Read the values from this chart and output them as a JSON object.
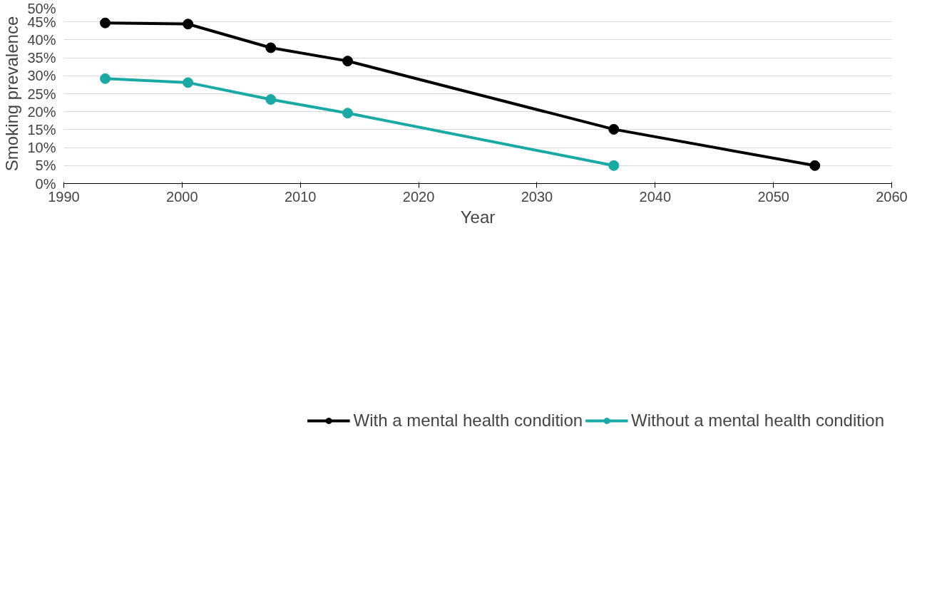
{
  "chart_data": {
    "type": "line",
    "xlabel": "Year",
    "ylabel": "Smoking prevalence",
    "xlim": [
      1990,
      2060
    ],
    "xticks": [
      1990,
      2000,
      2010,
      2020,
      2030,
      2040,
      2050,
      2060
    ],
    "ylim": [
      0,
      50
    ],
    "yticks": [
      {
        "value": 0,
        "label": "0%"
      },
      {
        "value": 5,
        "label": "5%"
      },
      {
        "value": 10,
        "label": "10%"
      },
      {
        "value": 15,
        "label": "15%"
      },
      {
        "value": 20,
        "label": "20%"
      },
      {
        "value": 25,
        "label": "25%"
      },
      {
        "value": 30,
        "label": "30%"
      },
      {
        "value": 35,
        "label": "35%"
      },
      {
        "value": 40,
        "label": "40%"
      },
      {
        "value": 45,
        "label": "45%"
      },
      {
        "value": 50,
        "label": "50%"
      }
    ],
    "grid": "y",
    "legend": "bottom",
    "marker": "circle",
    "line_style": "solid",
    "series": [
      {
        "name": "With a mental health condition",
        "color": "#000000",
        "x": [
          1993.5,
          2000.5,
          2007.5,
          2014,
          2036.5,
          2053.5
        ],
        "values": [
          44.7,
          44.4,
          37.8,
          34.1,
          15.1,
          5.0
        ]
      },
      {
        "name": "Without a mental health condition",
        "color": "#1aaaa6",
        "x": [
          1993.5,
          2000.5,
          2007.5,
          2014,
          2036.5
        ],
        "values": [
          29.2,
          28.1,
          23.4,
          19.6,
          5.0
        ]
      }
    ]
  }
}
